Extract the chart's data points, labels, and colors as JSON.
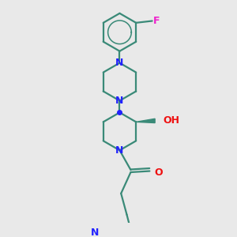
{
  "bg_color": "#e9e9e9",
  "bond_color": "#3a8a78",
  "N_color": "#2222ff",
  "O_color": "#ee1111",
  "F_color": "#ee22cc",
  "lw": 1.6,
  "figsize": [
    3.0,
    3.0
  ],
  "dpi": 100,
  "xlim": [
    0.15,
    0.85
  ],
  "ylim": [
    0.02,
    0.98
  ]
}
